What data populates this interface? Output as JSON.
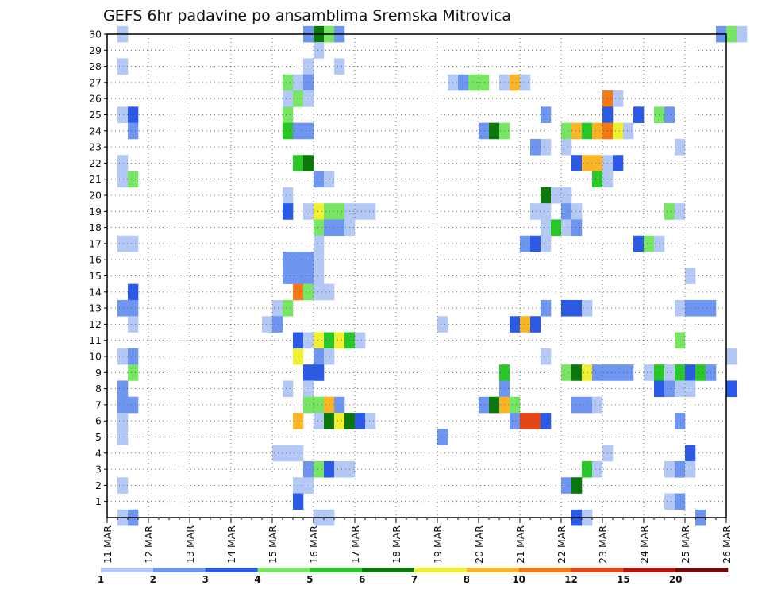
{
  "chart_data": {
    "type": "heatmap",
    "title": "GEFS 6hr padavine po ansamblima Sremska Mitrovica",
    "x_tick_labels": [
      "11 MAR",
      "12 MAR",
      "13 MAR",
      "14 MAR",
      "15 MAR",
      "16 MAR",
      "17 MAR",
      "18 MAR",
      "19 MAR",
      "20 MAR",
      "21 MAR",
      "22 MAR",
      "23 MAR",
      "24 MAR",
      "25 MAR",
      "26 MAR"
    ],
    "y_tick_labels": [
      "1",
      "2",
      "3",
      "4",
      "5",
      "6",
      "7",
      "8",
      "9",
      "10",
      "11",
      "12",
      "13",
      "14",
      "15",
      "16",
      "17",
      "18",
      "19",
      "20",
      "21",
      "22",
      "23",
      "24",
      "25",
      "26",
      "27",
      "28",
      "29",
      "30"
    ],
    "xlim_day": [
      11,
      26
    ],
    "ylim": [
      0,
      30
    ],
    "grid": true,
    "colorbar": {
      "levels": [
        "1",
        "2",
        "3",
        "4",
        "5",
        "6",
        "7",
        "8",
        "10",
        "12",
        "15",
        "20"
      ],
      "colors": [
        "#b4c8f5",
        "#6e96f0",
        "#2a5ae6",
        "#78e664",
        "#28c828",
        "#0a780a",
        "#f0f032",
        "#fab428",
        "#f57814",
        "#e64614",
        "#b4140a",
        "#6e0a0a"
      ]
    },
    "cells": [
      [
        30,
        1,
        1
      ],
      [
        30,
        19,
        2
      ],
      [
        30,
        20,
        6
      ],
      [
        30,
        21,
        4
      ],
      [
        30,
        22,
        2
      ],
      [
        30,
        59,
        2
      ],
      [
        30,
        60,
        4
      ],
      [
        30,
        61,
        1
      ],
      [
        29,
        20,
        1
      ],
      [
        28,
        1,
        1
      ],
      [
        28,
        19,
        1
      ],
      [
        28,
        22,
        1
      ],
      [
        27,
        17,
        4
      ],
      [
        27,
        18,
        1
      ],
      [
        27,
        19,
        2
      ],
      [
        27,
        33,
        1
      ],
      [
        27,
        34,
        2
      ],
      [
        27,
        35,
        4
      ],
      [
        27,
        36,
        4
      ],
      [
        27,
        38,
        1
      ],
      [
        27,
        39,
        8
      ],
      [
        27,
        40,
        1
      ],
      [
        26,
        17,
        1
      ],
      [
        26,
        18,
        4
      ],
      [
        26,
        19,
        1
      ],
      [
        26,
        48,
        9
      ],
      [
        26,
        49,
        1
      ],
      [
        25,
        1,
        1
      ],
      [
        25,
        2,
        3
      ],
      [
        25,
        17,
        4
      ],
      [
        25,
        42,
        2
      ],
      [
        25,
        48,
        3
      ],
      [
        25,
        51,
        3
      ],
      [
        25,
        53,
        4
      ],
      [
        25,
        54,
        2
      ],
      [
        24,
        2,
        2
      ],
      [
        24,
        17,
        5
      ],
      [
        24,
        18,
        2
      ],
      [
        24,
        19,
        2
      ],
      [
        24,
        36,
        2
      ],
      [
        24,
        37,
        6
      ],
      [
        24,
        38,
        4
      ],
      [
        24,
        44,
        4
      ],
      [
        24,
        45,
        8
      ],
      [
        24,
        46,
        5
      ],
      [
        24,
        47,
        8
      ],
      [
        24,
        48,
        9
      ],
      [
        24,
        49,
        7
      ],
      [
        24,
        50,
        1
      ],
      [
        23,
        41,
        2
      ],
      [
        23,
        42,
        1
      ],
      [
        23,
        44,
        1
      ],
      [
        23,
        55,
        1
      ],
      [
        22,
        1,
        1
      ],
      [
        22,
        18,
        5
      ],
      [
        22,
        19,
        6
      ],
      [
        22,
        45,
        3
      ],
      [
        22,
        46,
        8
      ],
      [
        22,
        47,
        8
      ],
      [
        22,
        48,
        1
      ],
      [
        22,
        49,
        3
      ],
      [
        21,
        1,
        1
      ],
      [
        21,
        2,
        4
      ],
      [
        21,
        20,
        2
      ],
      [
        21,
        21,
        1
      ],
      [
        21,
        47,
        5
      ],
      [
        21,
        48,
        1
      ],
      [
        20,
        17,
        1
      ],
      [
        20,
        42,
        6
      ],
      [
        20,
        43,
        1
      ],
      [
        20,
        44,
        1
      ],
      [
        19,
        17,
        3
      ],
      [
        19,
        19,
        1
      ],
      [
        19,
        20,
        7
      ],
      [
        19,
        21,
        4
      ],
      [
        19,
        22,
        4
      ],
      [
        19,
        23,
        1
      ],
      [
        19,
        24,
        1
      ],
      [
        19,
        25,
        1
      ],
      [
        19,
        41,
        1
      ],
      [
        19,
        42,
        1
      ],
      [
        19,
        44,
        2
      ],
      [
        19,
        45,
        1
      ],
      [
        19,
        54,
        4
      ],
      [
        19,
        55,
        1
      ],
      [
        18,
        20,
        4
      ],
      [
        18,
        21,
        2
      ],
      [
        18,
        22,
        2
      ],
      [
        18,
        23,
        1
      ],
      [
        18,
        42,
        1
      ],
      [
        18,
        43,
        5
      ],
      [
        18,
        44,
        1
      ],
      [
        18,
        45,
        2
      ],
      [
        17,
        1,
        1
      ],
      [
        17,
        2,
        1
      ],
      [
        17,
        20,
        1
      ],
      [
        17,
        40,
        2
      ],
      [
        17,
        41,
        3
      ],
      [
        17,
        42,
        1
      ],
      [
        17,
        51,
        3
      ],
      [
        17,
        52,
        4
      ],
      [
        17,
        53,
        1
      ],
      [
        16,
        17,
        2
      ],
      [
        16,
        18,
        2
      ],
      [
        16,
        19,
        2
      ],
      [
        16,
        20,
        1
      ],
      [
        15,
        17,
        2
      ],
      [
        15,
        18,
        2
      ],
      [
        15,
        19,
        2
      ],
      [
        15,
        20,
        1
      ],
      [
        15,
        56,
        1
      ],
      [
        14,
        2,
        3
      ],
      [
        14,
        18,
        9
      ],
      [
        14,
        19,
        4
      ],
      [
        14,
        20,
        1
      ],
      [
        14,
        21,
        1
      ],
      [
        13,
        1,
        2
      ],
      [
        13,
        2,
        2
      ],
      [
        13,
        16,
        1
      ],
      [
        13,
        17,
        4
      ],
      [
        13,
        42,
        2
      ],
      [
        13,
        44,
        3
      ],
      [
        13,
        45,
        3
      ],
      [
        13,
        46,
        1
      ],
      [
        13,
        55,
        1
      ],
      [
        13,
        56,
        2
      ],
      [
        13,
        57,
        2
      ],
      [
        13,
        58,
        2
      ],
      [
        12,
        2,
        1
      ],
      [
        12,
        15,
        1
      ],
      [
        12,
        16,
        2
      ],
      [
        12,
        32,
        1
      ],
      [
        12,
        39,
        3
      ],
      [
        12,
        40,
        8
      ],
      [
        12,
        41,
        3
      ],
      [
        11,
        18,
        3
      ],
      [
        11,
        19,
        1
      ],
      [
        11,
        20,
        7
      ],
      [
        11,
        21,
        5
      ],
      [
        11,
        22,
        7
      ],
      [
        11,
        23,
        5
      ],
      [
        11,
        24,
        1
      ],
      [
        11,
        55,
        4
      ],
      [
        10,
        1,
        1
      ],
      [
        10,
        2,
        2
      ],
      [
        10,
        18,
        7
      ],
      [
        10,
        20,
        2
      ],
      [
        10,
        21,
        1
      ],
      [
        10,
        42,
        1
      ],
      [
        10,
        60,
        1
      ],
      [
        9,
        2,
        4
      ],
      [
        9,
        19,
        3
      ],
      [
        9,
        20,
        3
      ],
      [
        9,
        38,
        5
      ],
      [
        9,
        44,
        4
      ],
      [
        9,
        45,
        6
      ],
      [
        9,
        46,
        7
      ],
      [
        9,
        47,
        2
      ],
      [
        9,
        48,
        2
      ],
      [
        9,
        49,
        2
      ],
      [
        9,
        50,
        2
      ],
      [
        9,
        52,
        1
      ],
      [
        9,
        53,
        5
      ],
      [
        9,
        54,
        1
      ],
      [
        9,
        55,
        5
      ],
      [
        9,
        56,
        3
      ],
      [
        9,
        57,
        5
      ],
      [
        9,
        58,
        2
      ],
      [
        8,
        1,
        2
      ],
      [
        8,
        17,
        1
      ],
      [
        8,
        19,
        1
      ],
      [
        8,
        38,
        2
      ],
      [
        8,
        53,
        3
      ],
      [
        8,
        54,
        2
      ],
      [
        8,
        55,
        1
      ],
      [
        8,
        56,
        1
      ],
      [
        8,
        60,
        3
      ],
      [
        7,
        1,
        2
      ],
      [
        7,
        2,
        2
      ],
      [
        7,
        19,
        4
      ],
      [
        7,
        20,
        4
      ],
      [
        7,
        21,
        8
      ],
      [
        7,
        22,
        2
      ],
      [
        7,
        36,
        2
      ],
      [
        7,
        37,
        6
      ],
      [
        7,
        38,
        8
      ],
      [
        7,
        39,
        4
      ],
      [
        7,
        45,
        2
      ],
      [
        7,
        46,
        2
      ],
      [
        7,
        47,
        1
      ],
      [
        6,
        1,
        1
      ],
      [
        6,
        18,
        8
      ],
      [
        6,
        20,
        1
      ],
      [
        6,
        21,
        6
      ],
      [
        6,
        22,
        7
      ],
      [
        6,
        23,
        6
      ],
      [
        6,
        24,
        3
      ],
      [
        6,
        25,
        1
      ],
      [
        6,
        39,
        2
      ],
      [
        6,
        40,
        10
      ],
      [
        6,
        41,
        10
      ],
      [
        6,
        42,
        3
      ],
      [
        6,
        55,
        2
      ],
      [
        5,
        1,
        1
      ],
      [
        5,
        32,
        2
      ],
      [
        4,
        16,
        1
      ],
      [
        4,
        17,
        1
      ],
      [
        4,
        18,
        1
      ],
      [
        4,
        48,
        1
      ],
      [
        4,
        56,
        3
      ],
      [
        3,
        19,
        2
      ],
      [
        3,
        20,
        4
      ],
      [
        3,
        21,
        3
      ],
      [
        3,
        22,
        1
      ],
      [
        3,
        23,
        1
      ],
      [
        3,
        46,
        5
      ],
      [
        3,
        47,
        1
      ],
      [
        3,
        54,
        1
      ],
      [
        3,
        55,
        2
      ],
      [
        3,
        56,
        1
      ],
      [
        2,
        1,
        1
      ],
      [
        2,
        18,
        1
      ],
      [
        2,
        19,
        1
      ],
      [
        2,
        44,
        2
      ],
      [
        2,
        45,
        6
      ],
      [
        1,
        18,
        3
      ],
      [
        1,
        54,
        1
      ],
      [
        1,
        55,
        2
      ],
      [
        0,
        1,
        1
      ],
      [
        0,
        2,
        2
      ],
      [
        0,
        20,
        1
      ],
      [
        0,
        21,
        1
      ],
      [
        0,
        45,
        3
      ],
      [
        0,
        46,
        1
      ],
      [
        0,
        57,
        2
      ]
    ]
  }
}
